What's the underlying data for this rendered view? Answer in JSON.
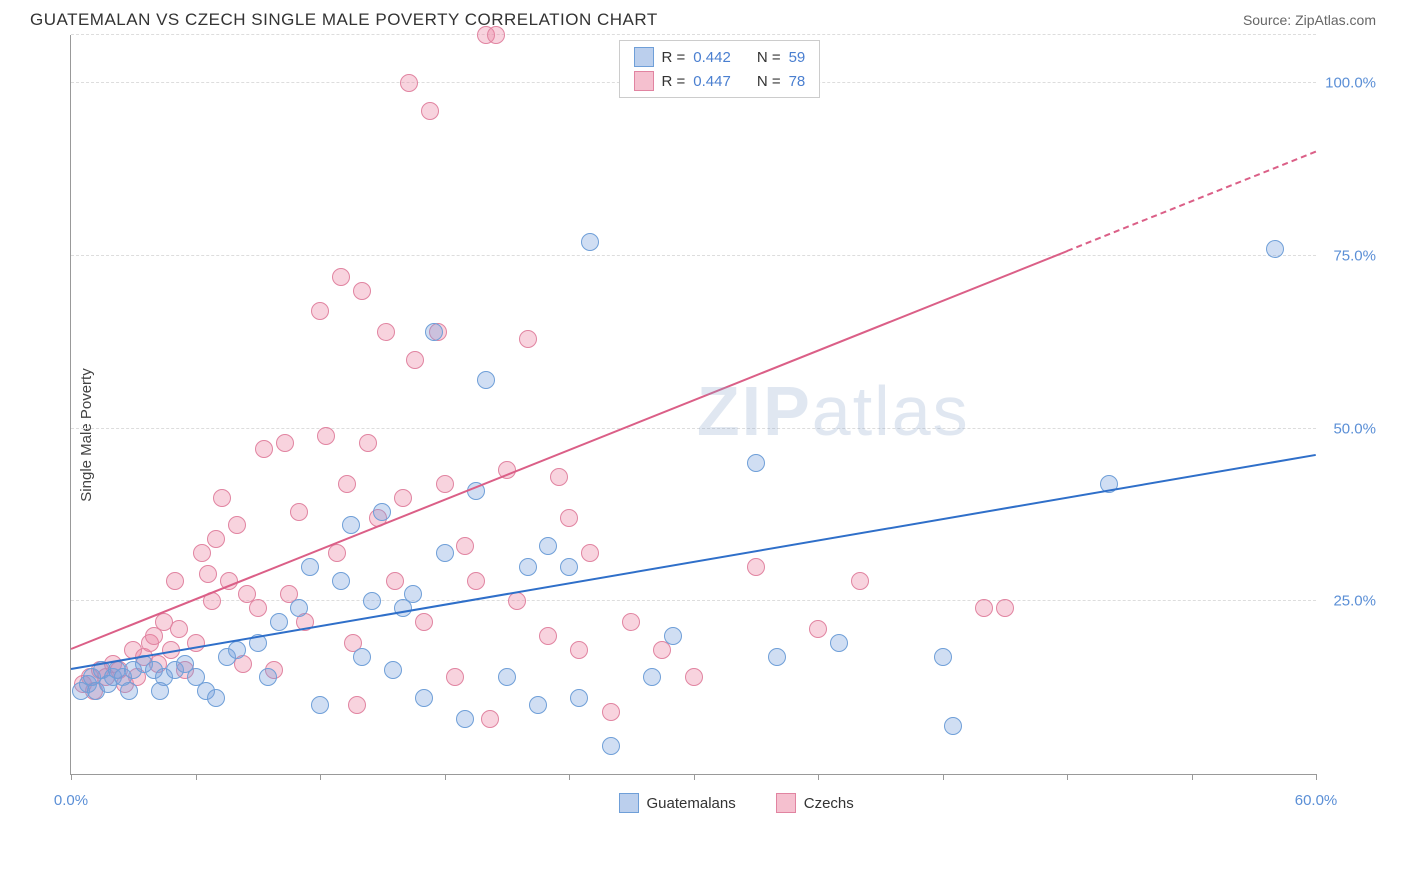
{
  "header": {
    "title": "GUATEMALAN VS CZECH SINGLE MALE POVERTY CORRELATION CHART",
    "source_prefix": "Source: ",
    "source_name": "ZipAtlas.com"
  },
  "axes": {
    "y_label": "Single Male Poverty",
    "x_min": 0.0,
    "x_max": 60.0,
    "y_min": 0.0,
    "y_max": 107.0,
    "x_ticks": [
      0.0,
      6.0,
      12.0,
      18.0,
      24.0,
      30.0,
      36.0,
      42.0,
      48.0,
      54.0,
      60.0
    ],
    "x_tick_labels": {
      "first": "0.0%",
      "last": "60.0%"
    },
    "y_gridlines": [
      25.0,
      50.0,
      75.0,
      100.0,
      107.0
    ],
    "y_tick_labels": [
      {
        "v": 25.0,
        "t": "25.0%"
      },
      {
        "v": 50.0,
        "t": "50.0%"
      },
      {
        "v": 75.0,
        "t": "75.0%"
      },
      {
        "v": 100.0,
        "t": "100.0%"
      }
    ]
  },
  "series": {
    "guatemalans": {
      "label": "Guatemalans",
      "fill": "rgba(120,160,220,0.35)",
      "stroke": "#6f9fd8",
      "line_color": "#2f6fc9",
      "swatch_fill": "rgba(120,160,220,0.5)",
      "swatch_stroke": "#6f9fd8",
      "marker_r": 9,
      "R": "0.442",
      "N": "59",
      "regression": {
        "x1": 0.0,
        "y1": 15.0,
        "x2": 60.0,
        "y2": 46.0
      },
      "points": [
        [
          0.5,
          12
        ],
        [
          0.8,
          13
        ],
        [
          1.0,
          14
        ],
        [
          1.2,
          12
        ],
        [
          1.5,
          15
        ],
        [
          1.8,
          13
        ],
        [
          2.0,
          14
        ],
        [
          2.2,
          15
        ],
        [
          2.5,
          14
        ],
        [
          3.0,
          15
        ],
        [
          2.8,
          12
        ],
        [
          3.5,
          16
        ],
        [
          4.0,
          15
        ],
        [
          4.5,
          14
        ],
        [
          4.3,
          12
        ],
        [
          5.0,
          15
        ],
        [
          5.5,
          16
        ],
        [
          6.0,
          14
        ],
        [
          6.5,
          12
        ],
        [
          7.0,
          11
        ],
        [
          7.5,
          17
        ],
        [
          8.0,
          18
        ],
        [
          9.0,
          19
        ],
        [
          9.5,
          14
        ],
        [
          10.0,
          22
        ],
        [
          11.0,
          24
        ],
        [
          11.5,
          30
        ],
        [
          12.0,
          10
        ],
        [
          13.0,
          28
        ],
        [
          13.5,
          36
        ],
        [
          14.0,
          17
        ],
        [
          14.5,
          25
        ],
        [
          15.0,
          38
        ],
        [
          15.5,
          15
        ],
        [
          16.0,
          24
        ],
        [
          16.5,
          26
        ],
        [
          17.0,
          11
        ],
        [
          17.5,
          64
        ],
        [
          18.0,
          32
        ],
        [
          19.0,
          8
        ],
        [
          19.5,
          41
        ],
        [
          20.0,
          57
        ],
        [
          21.0,
          14
        ],
        [
          22.0,
          30
        ],
        [
          22.5,
          10
        ],
        [
          23.0,
          33
        ],
        [
          24.0,
          30
        ],
        [
          24.5,
          11
        ],
        [
          25.0,
          77
        ],
        [
          28.0,
          14
        ],
        [
          29.0,
          20
        ],
        [
          33.0,
          45
        ],
        [
          34.0,
          17
        ],
        [
          37.0,
          19
        ],
        [
          42.0,
          17
        ],
        [
          42.5,
          7
        ],
        [
          50.0,
          42
        ],
        [
          58.0,
          76
        ],
        [
          26.0,
          4
        ]
      ]
    },
    "czechs": {
      "label": "Czechs",
      "fill": "rgba(235,130,160,0.35)",
      "stroke": "#e184a1",
      "line_color": "#db5f87",
      "swatch_fill": "rgba(235,130,160,0.5)",
      "swatch_stroke": "#e184a1",
      "marker_r": 9,
      "R": "0.447",
      "N": "78",
      "regression": {
        "x1": 0.0,
        "y1": 18.0,
        "x2": 60.0,
        "y2": 90.0
      },
      "dash_from_x": 48.0,
      "points": [
        [
          0.6,
          13
        ],
        [
          0.9,
          14
        ],
        [
          1.1,
          12
        ],
        [
          1.4,
          15
        ],
        [
          1.7,
          14
        ],
        [
          2.0,
          16
        ],
        [
          2.3,
          15
        ],
        [
          2.6,
          13
        ],
        [
          3.0,
          18
        ],
        [
          3.2,
          14
        ],
        [
          3.5,
          17
        ],
        [
          3.8,
          19
        ],
        [
          4.0,
          20
        ],
        [
          4.2,
          16
        ],
        [
          4.5,
          22
        ],
        [
          4.8,
          18
        ],
        [
          5.0,
          28
        ],
        [
          5.2,
          21
        ],
        [
          5.5,
          15
        ],
        [
          6.0,
          19
        ],
        [
          6.3,
          32
        ],
        [
          6.6,
          29
        ],
        [
          6.8,
          25
        ],
        [
          7.0,
          34
        ],
        [
          7.3,
          40
        ],
        [
          7.6,
          28
        ],
        [
          8.0,
          36
        ],
        [
          8.3,
          16
        ],
        [
          8.5,
          26
        ],
        [
          9.0,
          24
        ],
        [
          9.3,
          47
        ],
        [
          9.8,
          15
        ],
        [
          10.3,
          48
        ],
        [
          10.5,
          26
        ],
        [
          11.0,
          38
        ],
        [
          11.3,
          22
        ],
        [
          12.0,
          67
        ],
        [
          12.3,
          49
        ],
        [
          12.8,
          32
        ],
        [
          13.0,
          72
        ],
        [
          13.3,
          42
        ],
        [
          13.6,
          19
        ],
        [
          14.0,
          70
        ],
        [
          14.3,
          48
        ],
        [
          14.8,
          37
        ],
        [
          15.2,
          64
        ],
        [
          15.6,
          28
        ],
        [
          16.0,
          40
        ],
        [
          16.3,
          100
        ],
        [
          16.6,
          60
        ],
        [
          17.0,
          22
        ],
        [
          17.3,
          96
        ],
        [
          17.7,
          64
        ],
        [
          18.0,
          42
        ],
        [
          18.5,
          14
        ],
        [
          19.0,
          33
        ],
        [
          19.5,
          28
        ],
        [
          20.0,
          107
        ],
        [
          20.5,
          107
        ],
        [
          21.0,
          44
        ],
        [
          21.5,
          25
        ],
        [
          22.0,
          63
        ],
        [
          23.0,
          20
        ],
        [
          24.0,
          37
        ],
        [
          24.5,
          18
        ],
        [
          25.0,
          32
        ],
        [
          26.0,
          9
        ],
        [
          27.0,
          22
        ],
        [
          28.5,
          18
        ],
        [
          30.0,
          14
        ],
        [
          33.0,
          30
        ],
        [
          36.0,
          21
        ],
        [
          38.0,
          28
        ],
        [
          44.0,
          24
        ],
        [
          45.0,
          24
        ],
        [
          23.5,
          43
        ],
        [
          20.2,
          8
        ],
        [
          13.8,
          10
        ]
      ]
    }
  },
  "legend_top": {
    "R_label": "R =",
    "N_label": "N ="
  },
  "watermark": {
    "bold": "ZIP",
    "rest": "atlas"
  },
  "colors": {
    "grid": "#dddddd",
    "axis": "#999999",
    "title": "#333333",
    "source": "#666666",
    "tick_label": "#5b8fd6",
    "background": "#ffffff"
  }
}
